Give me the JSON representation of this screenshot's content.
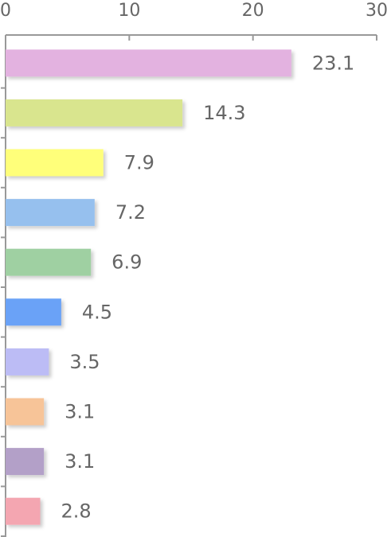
{
  "chart_data": {
    "type": "bar",
    "orientation": "horizontal",
    "categories": [
      null,
      null,
      null,
      null,
      null,
      null,
      null,
      null,
      null,
      null
    ],
    "values": [
      23.1,
      14.3,
      7.9,
      7.2,
      6.9,
      4.5,
      3.5,
      3.1,
      3.1,
      2.8
    ],
    "colors": [
      "#e3b2e0",
      "#d9e58e",
      "#ffff7a",
      "#96c0ee",
      "#9fd0a2",
      "#6aa2f7",
      "#bcbcf5",
      "#f7c498",
      "#b3a0c8",
      "#f4a6b1"
    ],
    "xlim": [
      0,
      30
    ],
    "xticks": [
      0,
      10,
      20,
      30
    ],
    "grid": false
  }
}
